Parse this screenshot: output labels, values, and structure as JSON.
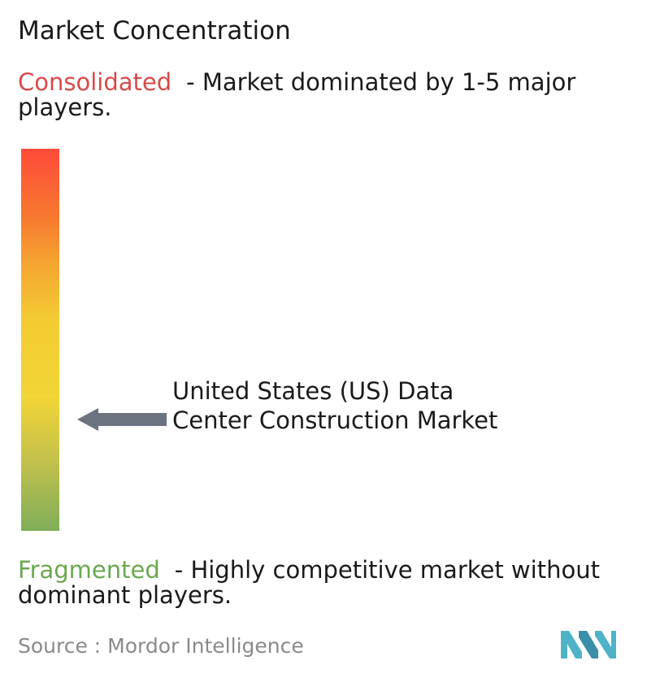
{
  "title": "Market Concentration",
  "consolidated": {
    "keyword": "Consolidated",
    "description": "- Market dominated by 1-5 major players."
  },
  "fragmented": {
    "keyword": "Fragmented",
    "description": "- Highly competitive market without dominant players."
  },
  "market": {
    "label": "United States (US) Data Center Construction Market"
  },
  "source": {
    "text": "Source :  Mordor Intelligence"
  },
  "colors": {
    "consolidated": "#d94a4a",
    "fragmented": "#6aa84f",
    "arrow": "#6b7280",
    "logo": "#4fb3c8",
    "scale_top": "#ff4b3a",
    "scale_middle": "#f3cc32",
    "scale_bottom": "#7fae59"
  },
  "icons": {
    "arrow": "left-arrow-icon",
    "logo": "mordor-intelligence-logo"
  }
}
